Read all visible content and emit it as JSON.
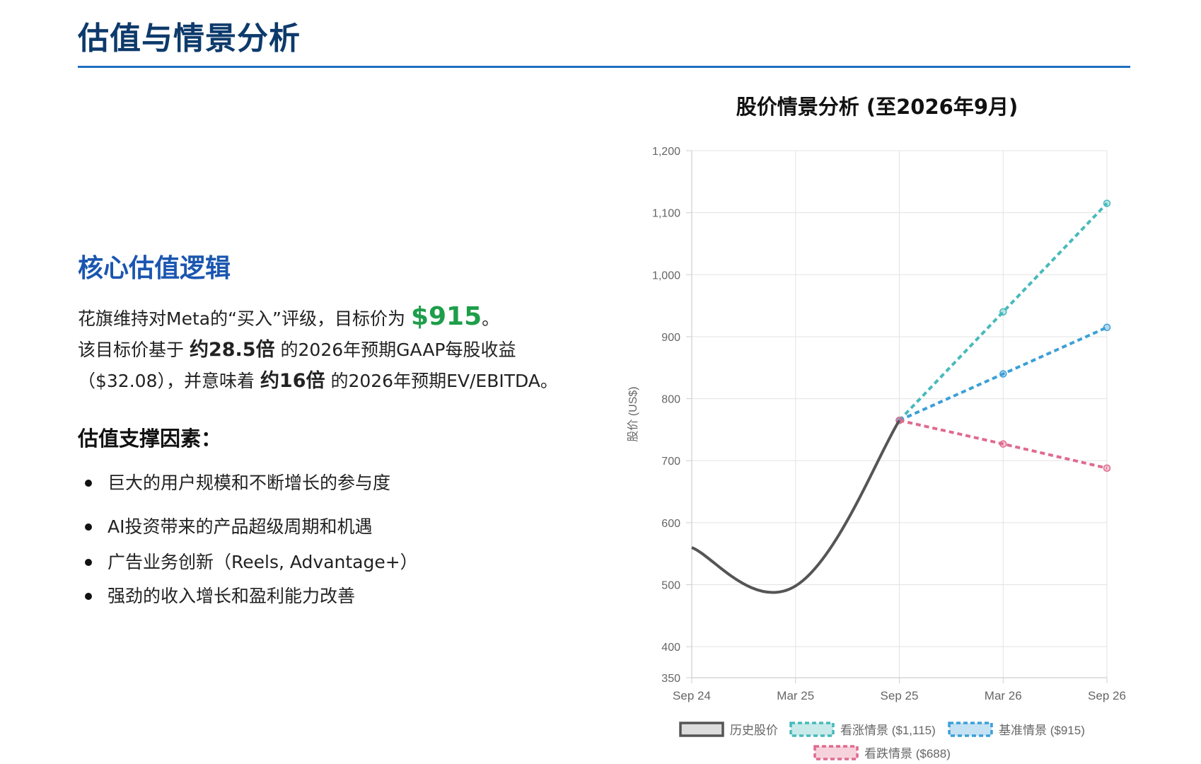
{
  "page": {
    "title": "估值与情景分析"
  },
  "left": {
    "section_heading": "核心估值逻辑",
    "para1_prefix": "花旗维持对Meta的“买入”评级，目标价为 ",
    "para1_price": "$915",
    "para1_suffix": "。",
    "para2_a": "该目标价基于 ",
    "para2_b": "约28.5倍",
    "para2_c": " 的2026年预期GAAP每股收益（$32.08），并意味着 ",
    "para2_d": "约16倍",
    "para2_e": " 的2026年预期EV/EBITDA。",
    "factors_heading": "估值支撑因素：",
    "factors": [
      "巨大的用户规模和不断增长的参与度",
      "AI投资带来的产品超级周期和机遇",
      "广告业务创新（Reels, Advantage+）",
      "强劲的收入增长和盈利能力改善"
    ]
  },
  "colors": {
    "brand": "#0d3a6b",
    "accent": "#1a56b0",
    "price_green": "#1e9e4a",
    "history": "#555555",
    "bull": "#48b9bb",
    "base": "#3b9fd8",
    "bear": "#e06a8f"
  },
  "chart_data": {
    "type": "line",
    "title": "股价情景分析 (至2026年9月)",
    "ylabel": "股价 (US$)",
    "xlabel": "",
    "categories": [
      "Sep 24",
      "Mar 25",
      "Sep 25",
      "Mar 26",
      "Sep 26"
    ],
    "y_ticks": [
      "350",
      "400",
      "500",
      "600",
      "700",
      "800",
      "900",
      "1,000",
      "1,100",
      "1,200"
    ],
    "y_tick_values": [
      350,
      400,
      500,
      600,
      700,
      800,
      900,
      1000,
      1100,
      1200
    ],
    "ylim": [
      350,
      1200
    ],
    "grid": true,
    "legend_position": "bottom",
    "series": [
      {
        "name": "历史股价",
        "style": "solid",
        "values": [
          560,
          498,
          765,
          null,
          null
        ]
      },
      {
        "name": "看涨情景 ($1,115)",
        "style": "dashed",
        "values": [
          null,
          null,
          765,
          940,
          1115
        ]
      },
      {
        "name": "基准情景 ($915)",
        "style": "dashed",
        "values": [
          null,
          null,
          765,
          840,
          915
        ]
      },
      {
        "name": "看跌情景 ($688)",
        "style": "dashed",
        "values": [
          null,
          null,
          765,
          727,
          688
        ]
      }
    ]
  }
}
